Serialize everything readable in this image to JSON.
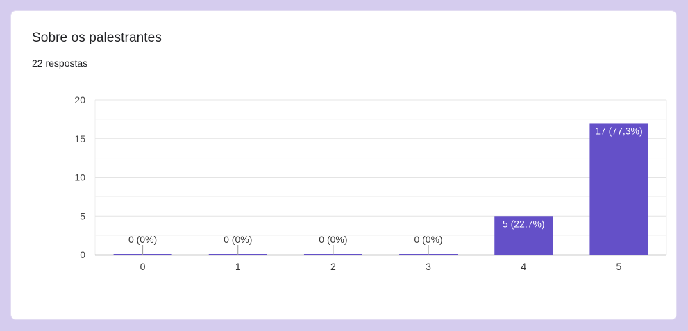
{
  "question": {
    "title": "Sobre os palestrantes",
    "responses": "22 respostas"
  },
  "colors": {
    "bar": "#6450c8",
    "background": "#d5ccee"
  },
  "chart_data": {
    "type": "bar",
    "categories": [
      "0",
      "1",
      "2",
      "3",
      "4",
      "5"
    ],
    "values": [
      0,
      0,
      0,
      0,
      5,
      17
    ],
    "labels": [
      "0 (0%)",
      "0 (0%)",
      "0 (0%)",
      "0 (0%)",
      "5 (22,7%)",
      "17 (77,3%)"
    ],
    "ylim": [
      0,
      20
    ],
    "yticks": [
      0,
      5,
      10,
      15,
      20
    ],
    "grid": true
  }
}
